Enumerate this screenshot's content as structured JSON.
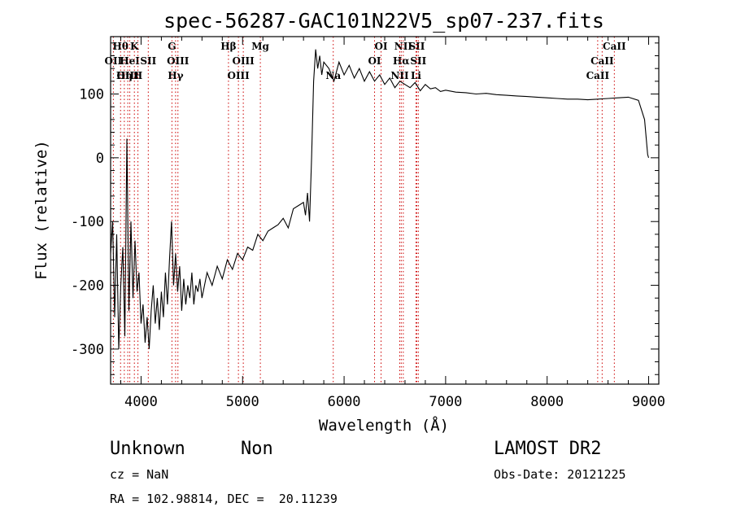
{
  "chart_data": {
    "type": "line",
    "title": "spec-56287-GAC101N22V5_sp07-237.fits",
    "xlabel": "Wavelength (Å)",
    "ylabel": "Flux (relative)",
    "xlim": [
      3700,
      9100
    ],
    "ylim": [
      -355,
      190
    ],
    "xticks": [
      4000,
      5000,
      6000,
      7000,
      8000,
      9000
    ],
    "yticks": [
      -300,
      -200,
      -100,
      0,
      100
    ],
    "series": [
      {
        "x": [
          3700,
          3720,
          3740,
          3760,
          3780,
          3800,
          3820,
          3840,
          3860,
          3880,
          3900,
          3920,
          3940,
          3960,
          3980,
          4000,
          4020,
          4040,
          4060,
          4080,
          4100,
          4120,
          4140,
          4160,
          4180,
          4200,
          4220,
          4240,
          4260,
          4280,
          4300,
          4320,
          4340,
          4360,
          4380,
          4400,
          4420,
          4440,
          4460,
          4480,
          4500,
          4520,
          4540,
          4560,
          4580,
          4600,
          4650,
          4700,
          4750,
          4800,
          4850,
          4900,
          4950,
          5000,
          5050,
          5100,
          5150,
          5200,
          5250,
          5300,
          5350,
          5400,
          5450,
          5500,
          5550,
          5600,
          5620,
          5640,
          5660,
          5680,
          5700,
          5720,
          5740,
          5760,
          5780,
          5800,
          5850,
          5900,
          5950,
          6000,
          6050,
          6100,
          6150,
          6200,
          6250,
          6300,
          6350,
          6400,
          6450,
          6500,
          6550,
          6600,
          6650,
          6700,
          6750,
          6800,
          6850,
          6900,
          6950,
          7000,
          7100,
          7200,
          7300,
          7400,
          7500,
          7600,
          7700,
          7800,
          7900,
          8000,
          8100,
          8200,
          8300,
          8400,
          8500,
          8600,
          8700,
          8800,
          8900,
          8960,
          8990,
          9000
        ],
        "y": [
          -150,
          -100,
          -250,
          -120,
          -300,
          -200,
          -140,
          -280,
          30,
          -240,
          -100,
          -220,
          -130,
          -210,
          -180,
          -260,
          -230,
          -290,
          -250,
          -300,
          -240,
          -200,
          -260,
          -220,
          -270,
          -210,
          -250,
          -180,
          -230,
          -160,
          -100,
          -200,
          -150,
          -210,
          -170,
          -240,
          -190,
          -230,
          -200,
          -220,
          -180,
          -230,
          -200,
          -210,
          -190,
          -220,
          -180,
          -200,
          -170,
          -190,
          -160,
          -175,
          -150,
          -160,
          -140,
          -145,
          -120,
          -130,
          -115,
          -110,
          -105,
          -95,
          -110,
          -80,
          -75,
          -70,
          -90,
          -55,
          -100,
          0,
          120,
          170,
          140,
          160,
          130,
          150,
          140,
          120,
          150,
          130,
          145,
          125,
          140,
          120,
          135,
          120,
          130,
          115,
          125,
          110,
          120,
          115,
          110,
          118,
          105,
          115,
          108,
          110,
          104,
          106,
          103,
          102,
          100,
          101,
          99,
          98,
          97,
          96,
          95,
          94,
          93,
          92,
          92,
          91,
          92,
          93,
          94,
          95,
          90,
          60,
          5,
          0
        ]
      }
    ],
    "line_markers": [
      {
        "name": "Hθ",
        "wavelength": 3798,
        "row": 0
      },
      {
        "name": "OII",
        "wavelength": 3727,
        "row": 1
      },
      {
        "name": "OIII",
        "wavelength": 3869,
        "row": 2
      },
      {
        "name": "K",
        "wavelength": 3934,
        "row": 0
      },
      {
        "name": "HeI",
        "wavelength": 3889,
        "row": 1
      },
      {
        "name": "SII",
        "wavelength": 4071,
        "row": 1
      },
      {
        "name": "Hη",
        "wavelength": 3835,
        "row": 2
      },
      {
        "name": "H",
        "wavelength": 3969,
        "row": 2
      },
      {
        "name": "G",
        "wavelength": 4304,
        "row": 0
      },
      {
        "name": "OIII",
        "wavelength": 4363,
        "row": 1
      },
      {
        "name": "Hγ",
        "wavelength": 4340,
        "row": 2
      },
      {
        "name": "Hβ",
        "wavelength": 4861,
        "row": 0
      },
      {
        "name": "OIII",
        "wavelength": 5007,
        "row": 1
      },
      {
        "name": "OIII",
        "wavelength": 4959,
        "row": 2
      },
      {
        "name": "Mg",
        "wavelength": 5175,
        "row": 0
      },
      {
        "name": "Na",
        "wavelength": 5893,
        "row": 2
      },
      {
        "name": "OI",
        "wavelength": 6364,
        "row": 0
      },
      {
        "name": "OI",
        "wavelength": 6300,
        "row": 1
      },
      {
        "name": "NII",
        "wavelength": 6583,
        "row": 0
      },
      {
        "name": "SII",
        "wavelength": 6716,
        "row": 0
      },
      {
        "name": "Hα",
        "wavelength": 6563,
        "row": 1
      },
      {
        "name": "SII",
        "wavelength": 6731,
        "row": 1
      },
      {
        "name": "NII",
        "wavelength": 6548,
        "row": 2
      },
      {
        "name": "Li",
        "wavelength": 6708,
        "row": 2
      },
      {
        "name": "CaII",
        "wavelength": 8662,
        "row": 0
      },
      {
        "name": "CaII",
        "wavelength": 8542,
        "row": 1
      },
      {
        "name": "CaII",
        "wavelength": 8498,
        "row": 2
      }
    ],
    "grid": false,
    "line_color": "#000000",
    "marker_color": "#cc0000"
  },
  "info": {
    "class_label": "Unknown",
    "subclass_label": "Non",
    "survey": "LAMOST DR2",
    "redshift": "cz = NaN",
    "obs_date": "Obs-Date: 20121225",
    "coords": "RA = 102.98814, DEC =  20.11239"
  }
}
